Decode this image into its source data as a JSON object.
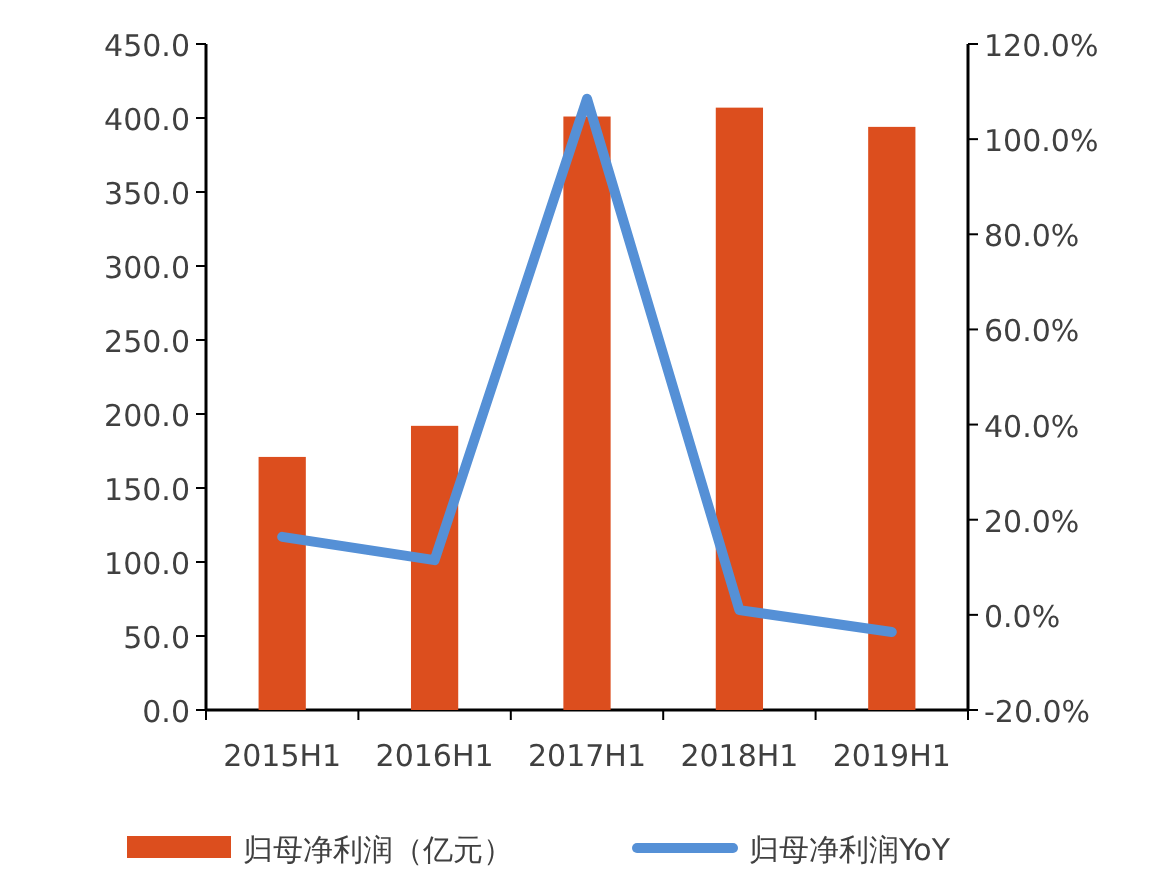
{
  "chart_data": {
    "type": "bar",
    "categories": [
      "2015H1",
      "2016H1",
      "2017H1",
      "2018H1",
      "2019H1"
    ],
    "series": [
      {
        "name": "归母净利润（亿元）",
        "color": "#dc4e1e",
        "values": [
          171,
          192,
          401,
          407,
          394
        ]
      },
      {
        "name": "归母净利润YoY",
        "type": "line",
        "axis": "y2",
        "color": "#5590d6",
        "values": [
          16.4,
          11.5,
          108.5,
          1.0,
          -3.6
        ]
      }
    ],
    "ylim": [
      0,
      450
    ],
    "yticks": [
      {
        "value": 0,
        "label": "0.0"
      },
      {
        "value": 50,
        "label": "50.0"
      },
      {
        "value": 100,
        "label": "100.0"
      },
      {
        "value": 150,
        "label": "150.0"
      },
      {
        "value": 200,
        "label": "200.0"
      },
      {
        "value": 250,
        "label": "250.0"
      },
      {
        "value": 300,
        "label": "300.0"
      },
      {
        "value": 350,
        "label": "350.0"
      },
      {
        "value": 400,
        "label": "400.0"
      },
      {
        "value": 450,
        "label": "450.0"
      }
    ],
    "y2lim": [
      -20,
      120
    ],
    "y2ticks": [
      {
        "value": -20,
        "label": "-20.0%"
      },
      {
        "value": 0,
        "label": "0.0%"
      },
      {
        "value": 20,
        "label": "20.0%"
      },
      {
        "value": 40,
        "label": "40.0%"
      },
      {
        "value": 60,
        "label": "60.0%"
      },
      {
        "value": 80,
        "label": "80.0%"
      },
      {
        "value": 100,
        "label": "100.0%"
      },
      {
        "value": 120,
        "label": "120.0%"
      }
    ],
    "grid": false,
    "legend": "bottom"
  }
}
